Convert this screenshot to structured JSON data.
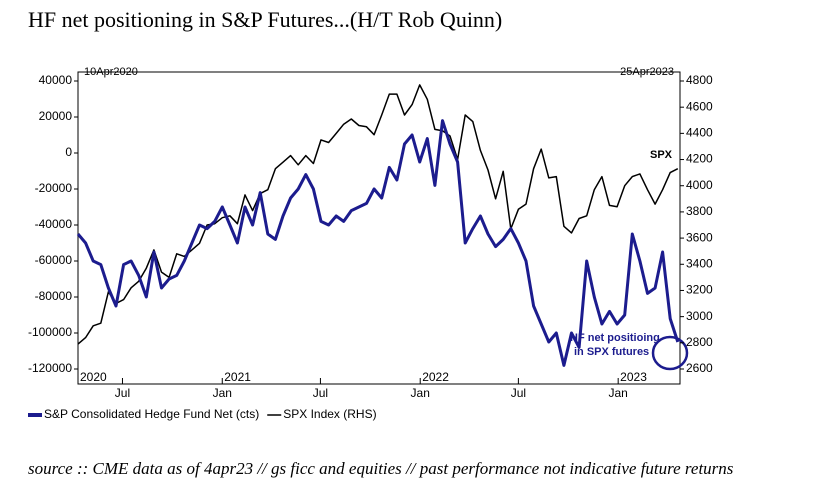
{
  "chart_data": {
    "type": "line",
    "title": "HF net positioning in S&P Futures...(H/T Rob Quinn)",
    "source": "source :: CME data as of 4apr23 // gs ficc and equities // past performance not indicative future returns",
    "start_label": "10Apr2020",
    "end_label": "25Apr2023",
    "xlim": [
      "2020-04-10",
      "2023-04-25"
    ],
    "xticks": [
      {
        "value": "2020-07-01",
        "label": "Jul"
      },
      {
        "value": "2021-01-01",
        "label": "Jan"
      },
      {
        "value": "2021-07-01",
        "label": "Jul"
      },
      {
        "value": "2022-01-01",
        "label": "Jan"
      },
      {
        "value": "2022-07-01",
        "label": "Jul"
      },
      {
        "value": "2023-01-01",
        "label": "Jan"
      }
    ],
    "year_ticks": [
      {
        "value": "2020-04-10",
        "label": "2020"
      },
      {
        "value": "2021-01-01",
        "label": "2021"
      },
      {
        "value": "2022-01-01",
        "label": "2022"
      },
      {
        "value": "2023-01-01",
        "label": "2023"
      }
    ],
    "ylim": [
      -120000,
      40000
    ],
    "yticks": [
      -120000,
      -100000,
      -80000,
      -60000,
      -40000,
      -20000,
      0,
      20000,
      40000
    ],
    "y2lim": [
      2600,
      4800
    ],
    "y2ticks": [
      2600,
      2800,
      3000,
      3200,
      3400,
      3600,
      3800,
      4000,
      4200,
      4400,
      4600,
      4800
    ],
    "x": [
      "2020-04-10",
      "2020-04-24",
      "2020-05-08",
      "2020-05-22",
      "2020-06-05",
      "2020-06-19",
      "2020-07-03",
      "2020-07-17",
      "2020-07-31",
      "2020-08-14",
      "2020-08-28",
      "2020-09-11",
      "2020-09-25",
      "2020-10-09",
      "2020-10-23",
      "2020-11-06",
      "2020-11-20",
      "2020-12-04",
      "2020-12-18",
      "2021-01-01",
      "2021-01-15",
      "2021-01-29",
      "2021-02-12",
      "2021-02-26",
      "2021-03-12",
      "2021-03-26",
      "2021-04-09",
      "2021-04-23",
      "2021-05-07",
      "2021-05-21",
      "2021-06-04",
      "2021-06-18",
      "2021-07-02",
      "2021-07-16",
      "2021-07-30",
      "2021-08-13",
      "2021-08-27",
      "2021-09-10",
      "2021-09-24",
      "2021-10-08",
      "2021-10-22",
      "2021-11-05",
      "2021-11-19",
      "2021-12-03",
      "2021-12-17",
      "2021-12-31",
      "2022-01-14",
      "2022-01-28",
      "2022-02-11",
      "2022-02-25",
      "2022-03-11",
      "2022-03-25",
      "2022-04-08",
      "2022-04-22",
      "2022-05-06",
      "2022-05-20",
      "2022-06-03",
      "2022-06-17",
      "2022-07-01",
      "2022-07-15",
      "2022-07-29",
      "2022-08-12",
      "2022-08-26",
      "2022-09-09",
      "2022-09-23",
      "2022-10-07",
      "2022-10-21",
      "2022-11-04",
      "2022-11-18",
      "2022-12-02",
      "2022-12-16",
      "2022-12-30",
      "2023-01-13",
      "2023-01-27",
      "2023-02-10",
      "2023-02-24",
      "2023-03-10",
      "2023-03-24",
      "2023-04-07",
      "2023-04-21"
    ],
    "series": [
      {
        "name": "S&P Consolidated Hedge Fund Net (cts)",
        "color": "#1c1c8e",
        "axis": "y",
        "values": [
          -45000,
          -50000,
          -60000,
          -62000,
          -75000,
          -85000,
          -62000,
          -60000,
          -68000,
          -80000,
          -55000,
          -75000,
          -70000,
          -68000,
          -60000,
          -50000,
          -40000,
          -42000,
          -38000,
          -30000,
          -40000,
          -50000,
          -30000,
          -40000,
          -22000,
          -45000,
          -48000,
          -35000,
          -25000,
          -20000,
          -12000,
          -20000,
          -38000,
          -40000,
          -35000,
          -38000,
          -32000,
          -30000,
          -28000,
          -20000,
          -25000,
          -8000,
          -15000,
          5000,
          10000,
          -5000,
          8000,
          -18000,
          18000,
          5000,
          -5000,
          -50000,
          -42000,
          -35000,
          -45000,
          -52000,
          -48000,
          -42000,
          -50000,
          -60000,
          -85000,
          -95000,
          -105000,
          -100000,
          -118000,
          -100000,
          -108000,
          -60000,
          -80000,
          -95000,
          -88000,
          -95000,
          -90000,
          -45000,
          -60000,
          -78000,
          -75000,
          -55000,
          -92000,
          -105000
        ]
      },
      {
        "name": "SPX Index (RHS)",
        "color": "#000000",
        "axis": "y2",
        "values": [
          2790,
          2840,
          2930,
          2950,
          3190,
          3100,
          3130,
          3220,
          3270,
          3370,
          3510,
          3340,
          3300,
          3480,
          3460,
          3510,
          3560,
          3700,
          3710,
          3756,
          3770,
          3710,
          3930,
          3810,
          3940,
          3970,
          4130,
          4180,
          4230,
          4160,
          4230,
          4170,
          4350,
          4330,
          4400,
          4470,
          4510,
          4460,
          4450,
          4390,
          4540,
          4700,
          4700,
          4540,
          4620,
          4770,
          4660,
          4430,
          4420,
          4380,
          4200,
          4540,
          4490,
          4270,
          4120,
          3900,
          4110,
          3670,
          3820,
          3860,
          4130,
          4280,
          4060,
          4070,
          3690,
          3640,
          3750,
          3770,
          3970,
          4070,
          3850,
          3840,
          4000,
          4070,
          4090,
          3970,
          3860,
          3970,
          4100,
          4130
        ]
      }
    ],
    "annotations": [
      "SPX",
      "HF net positioing",
      "in SPX futures"
    ]
  }
}
